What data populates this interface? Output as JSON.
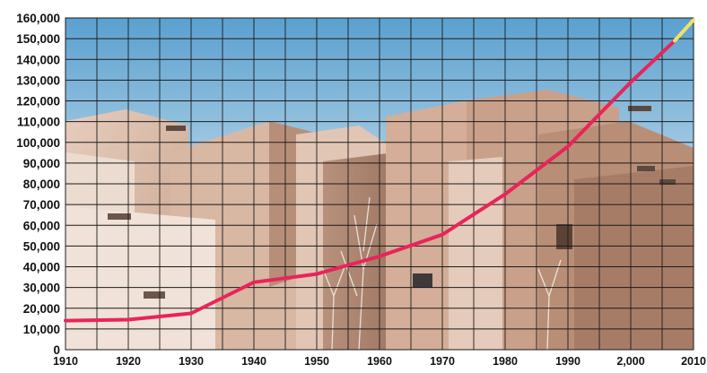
{
  "chart_data": {
    "type": "line",
    "title": "",
    "xlabel": "",
    "ylabel": "",
    "x_tick_labels": [
      "1910",
      "1920",
      "1930",
      "1940",
      "1950",
      "1960",
      "1970",
      "1980",
      "1990",
      "2,000",
      "2010"
    ],
    "y_tick_labels": [
      "0",
      "10,000",
      "20,000",
      "30,000",
      "40,000",
      "50,000",
      "60,000",
      "70,000",
      "80,000",
      "90,000",
      "100,000",
      "110,000",
      "120,000",
      "130,000",
      "140,000",
      "150,000",
      "160,000"
    ],
    "xlim": [
      1910,
      2010
    ],
    "ylim": [
      0,
      160000
    ],
    "grid": true,
    "legend": "none",
    "background": "photograph of adobe pueblo-style buildings under a blue sky",
    "series": [
      {
        "color": "#e8255a",
        "x": [
          1910,
          1920,
          1930,
          1940,
          1950,
          1960,
          1970,
          1980,
          1990,
          2000,
          2007
        ],
        "y": [
          14000,
          14500,
          17500,
          32500,
          36500,
          45000,
          55500,
          75000,
          98000,
          129000,
          149000
        ]
      },
      {
        "color": "#f2e06a",
        "x": [
          2007,
          2010
        ],
        "y": [
          149000,
          159000
        ]
      }
    ]
  }
}
